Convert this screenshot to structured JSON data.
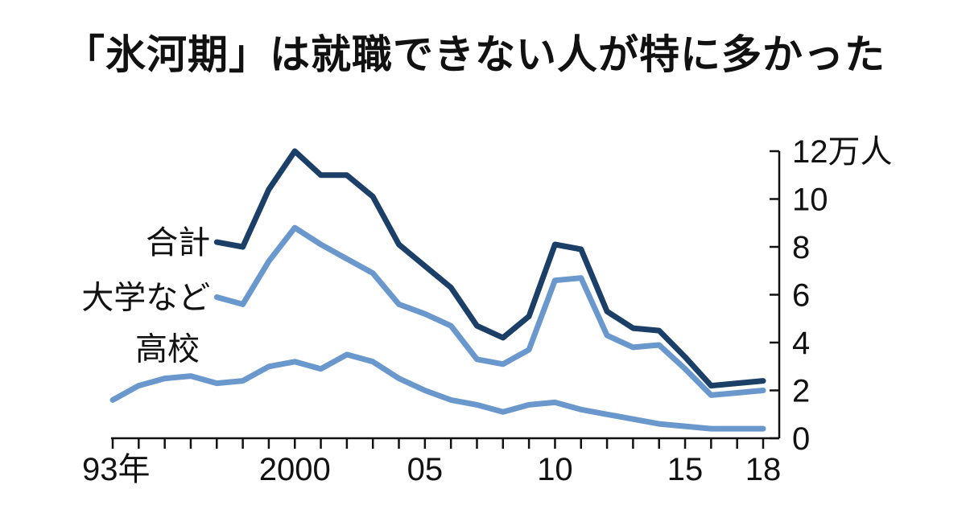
{
  "chart_data": {
    "type": "line",
    "title": "「氷河期」は就職できない人が特に多かった",
    "ylabel": "万人",
    "ylim": [
      0,
      12
    ],
    "yticks": [
      {
        "value": 0,
        "label": "0"
      },
      {
        "value": 2,
        "label": "2"
      },
      {
        "value": 4,
        "label": "4"
      },
      {
        "value": 6,
        "label": "6"
      },
      {
        "value": 8,
        "label": "8"
      },
      {
        "value": 10,
        "label": "10"
      },
      {
        "value": 12,
        "label": "12万人"
      }
    ],
    "x": [
      1993,
      1994,
      1995,
      1996,
      1997,
      1998,
      1999,
      2000,
      2001,
      2002,
      2003,
      2004,
      2005,
      2006,
      2007,
      2008,
      2009,
      2010,
      2011,
      2012,
      2013,
      2014,
      2015,
      2016,
      2017,
      2018
    ],
    "xlim": [
      1993,
      2018
    ],
    "xticks": [
      {
        "value": 1993,
        "label": "93年"
      },
      {
        "value": 2000,
        "label": "2000"
      },
      {
        "value": 2005,
        "label": "05"
      },
      {
        "value": 2010,
        "label": "10"
      },
      {
        "value": 2015,
        "label": "15"
      },
      {
        "value": 2018,
        "label": "18"
      }
    ],
    "grid": false,
    "series": [
      {
        "name": "合計",
        "color": "#1b3f66",
        "x": [
          1997,
          1998,
          1999,
          2000,
          2001,
          2002,
          2003,
          2004,
          2005,
          2006,
          2007,
          2008,
          2009,
          2010,
          2011,
          2012,
          2013,
          2014,
          2015,
          2016,
          2017,
          2018
        ],
        "values": [
          8.2,
          8.0,
          10.4,
          12.0,
          11.0,
          11.0,
          10.1,
          8.1,
          7.2,
          6.3,
          4.7,
          4.2,
          5.1,
          8.1,
          7.9,
          5.3,
          4.6,
          4.5,
          3.4,
          2.2,
          2.3,
          2.4
        ]
      },
      {
        "name": "大学など",
        "color": "#6b98cc",
        "x": [
          1997,
          1998,
          1999,
          2000,
          2001,
          2002,
          2003,
          2004,
          2005,
          2006,
          2007,
          2008,
          2009,
          2010,
          2011,
          2012,
          2013,
          2014,
          2015,
          2016,
          2017,
          2018
        ],
        "values": [
          5.9,
          5.6,
          7.4,
          8.8,
          8.1,
          7.5,
          6.9,
          5.6,
          5.2,
          4.7,
          3.3,
          3.1,
          3.7,
          6.6,
          6.7,
          4.3,
          3.8,
          3.9,
          2.9,
          1.8,
          1.9,
          2.0
        ]
      },
      {
        "name": "高校",
        "color": "#6b98cc",
        "x": [
          1993,
          1994,
          1995,
          1996,
          1997,
          1998,
          1999,
          2000,
          2001,
          2002,
          2003,
          2004,
          2005,
          2006,
          2007,
          2008,
          2009,
          2010,
          2011,
          2012,
          2013,
          2014,
          2015,
          2016,
          2017,
          2018
        ],
        "values": [
          1.6,
          2.2,
          2.5,
          2.6,
          2.3,
          2.4,
          3.0,
          3.2,
          2.9,
          3.5,
          3.2,
          2.5,
          2.0,
          1.6,
          1.4,
          1.1,
          1.4,
          1.5,
          1.2,
          1.0,
          0.8,
          0.6,
          0.5,
          0.4,
          0.4,
          0.4
        ]
      }
    ]
  }
}
